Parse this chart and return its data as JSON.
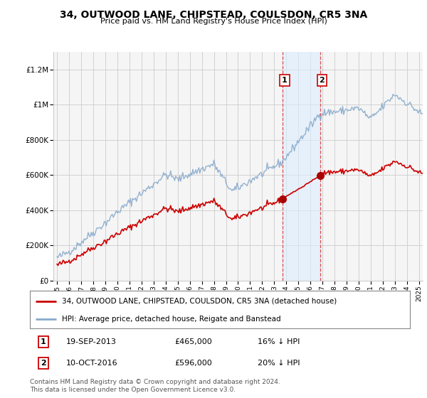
{
  "title": "34, OUTWOOD LANE, CHIPSTEAD, COULSDON, CR5 3NA",
  "subtitle": "Price paid vs. HM Land Registry's House Price Index (HPI)",
  "sale1_date": "19-SEP-2013",
  "sale1_price": 465000,
  "sale1_label": "16% ↓ HPI",
  "sale2_date": "10-OCT-2016",
  "sale2_price": 596000,
  "sale2_label": "20% ↓ HPI",
  "legend_house": "34, OUTWOOD LANE, CHIPSTEAD, COULSDON, CR5 3NA (detached house)",
  "legend_hpi": "HPI: Average price, detached house, Reigate and Banstead",
  "footer": "Contains HM Land Registry data © Crown copyright and database right 2024.\nThis data is licensed under the Open Government Licence v3.0.",
  "house_color": "#cc0000",
  "hpi_color": "#88aacc",
  "ylim": [
    0,
    1300000
  ],
  "xlim_start": 1994.7,
  "xlim_end": 2025.3,
  "background_color": "#ffffff",
  "plot_bg_color": "#f5f5f5"
}
